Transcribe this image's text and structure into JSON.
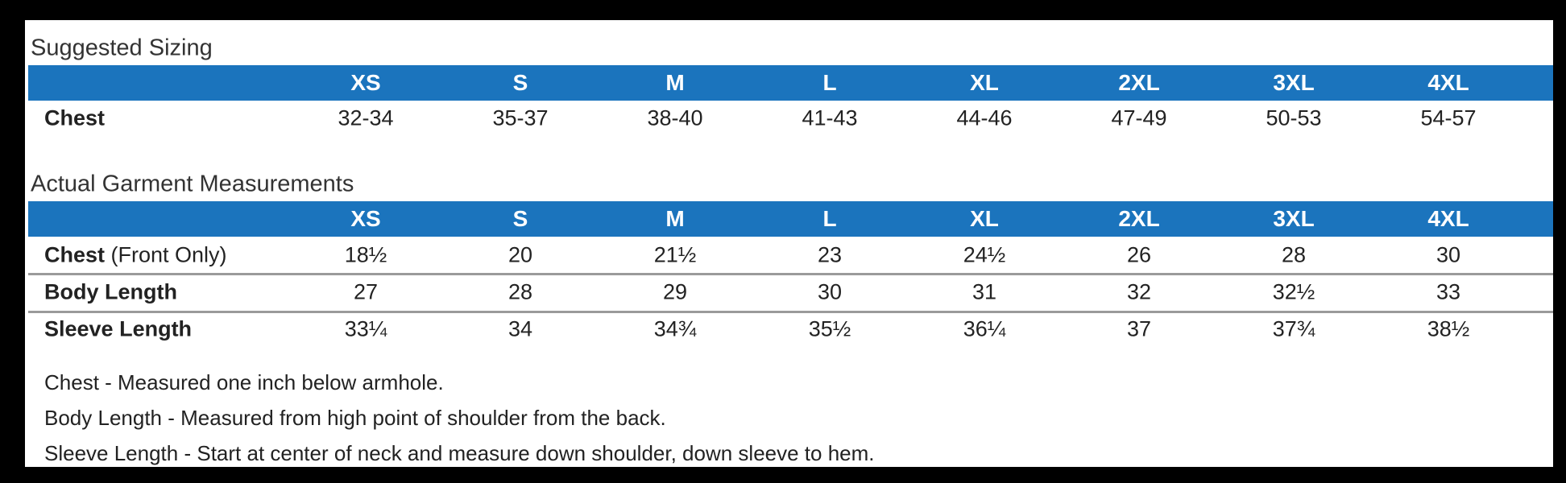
{
  "suggested_sizing": {
    "title": "Suggested Sizing",
    "headers": [
      "XS",
      "S",
      "M",
      "L",
      "XL",
      "2XL",
      "3XL",
      "4XL"
    ],
    "rows": [
      {
        "label": "Chest",
        "values": [
          "32-34",
          "35-37",
          "38-40",
          "41-43",
          "44-46",
          "47-49",
          "50-53",
          "54-57"
        ]
      }
    ]
  },
  "garment_measurements": {
    "title": "Actual Garment Measurements",
    "headers": [
      "XS",
      "S",
      "M",
      "L",
      "XL",
      "2XL",
      "3XL",
      "4XL"
    ],
    "rows": [
      {
        "label": "Chest",
        "note": "(Front Only)",
        "values": [
          "18½",
          "20",
          "21½",
          "23",
          "24½",
          "26",
          "28",
          "30"
        ]
      },
      {
        "label": "Body Length",
        "values": [
          "27",
          "28",
          "29",
          "30",
          "31",
          "32",
          "32½",
          "33"
        ]
      },
      {
        "label": "Sleeve Length",
        "values": [
          "33¼",
          "34",
          "34¾",
          "35½",
          "36¼",
          "37",
          "37¾",
          "38½"
        ]
      }
    ]
  },
  "notes": [
    "Chest - Measured one inch below armhole.",
    "Body Length - Measured from high point of shoulder from the back.",
    "Sleeve Length - Start at center of neck and measure down shoulder, down sleeve to hem."
  ]
}
